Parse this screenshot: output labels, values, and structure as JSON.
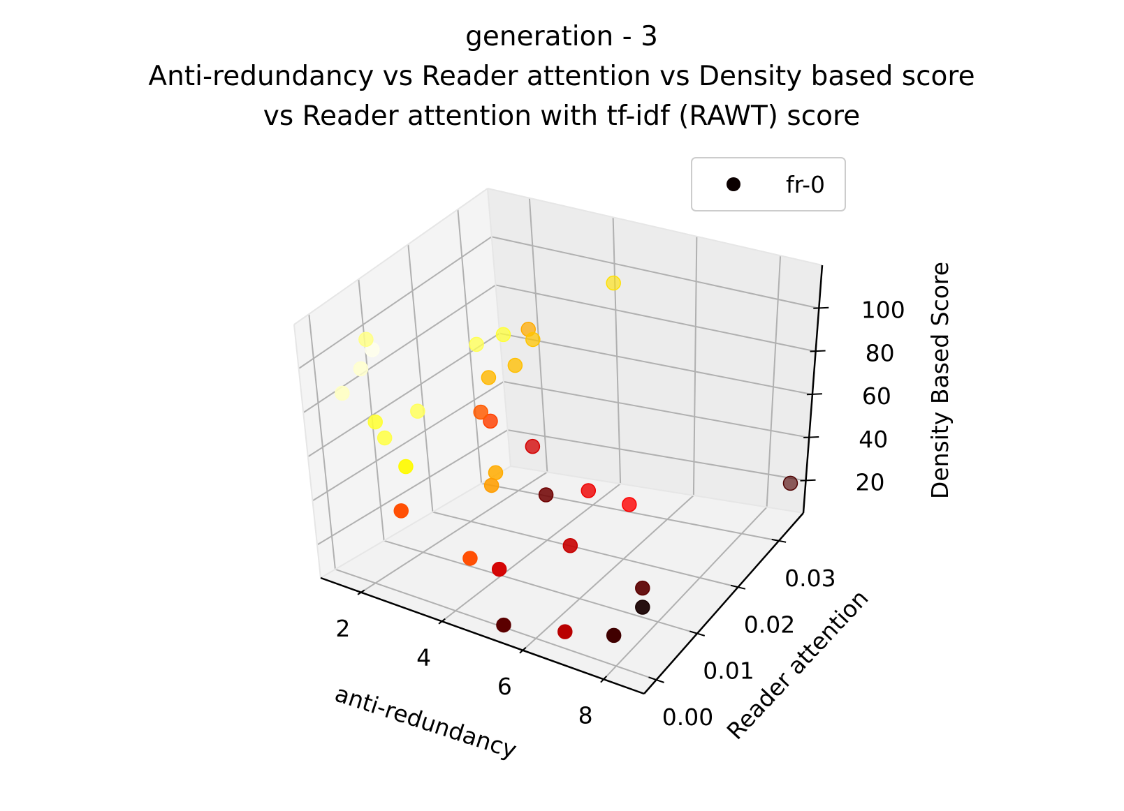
{
  "chart_data": {
    "type": "scatter",
    "projection": "3d",
    "title_lines": [
      "generation - 3",
      "Anti-redundancy vs Reader attention vs  Density based score",
      "vs Reader attention with tf-idf (RAWT) score"
    ],
    "xlabel": "anti-redundancy",
    "ylabel": "Reader attention",
    "zlabel": "Density Based Score",
    "x_ticks": [
      "2",
      "4",
      "6",
      "8"
    ],
    "y_ticks": [
      "0.00",
      "0.01",
      "0.02",
      "0.03"
    ],
    "z_ticks": [
      "20",
      "40",
      "60",
      "80",
      "100"
    ],
    "xlim": [
      1,
      9
    ],
    "ylim": [
      -0.003,
      0.036
    ],
    "zlim": [
      5,
      120
    ],
    "grid": true,
    "colormap": "hot",
    "legend": {
      "placement": "top-right",
      "entries": [
        "fr-0"
      ]
    },
    "legend_marker_color": "#0b0000",
    "series": [
      {
        "name": "fr-0",
        "points": [
          {
            "x": 1.1,
            "y": 0.008,
            "z": 84,
            "c": 0.95
          },
          {
            "x": 1.3,
            "y": 0.009,
            "z": 92,
            "c": 0.98
          },
          {
            "x": 1.3,
            "y": 0.008,
            "z": 98,
            "c": 0.88
          },
          {
            "x": 1.1,
            "y": 0.004,
            "z": 79,
            "c": 0.94
          },
          {
            "x": 1.6,
            "y": 0.006,
            "z": 66,
            "c": 0.8
          },
          {
            "x": 1.8,
            "y": 0.006,
            "z": 60,
            "c": 0.82
          },
          {
            "x": 2.3,
            "y": 0.009,
            "z": 70,
            "c": 0.84
          },
          {
            "x": 2.4,
            "y": 0.005,
            "z": 52,
            "c": 0.74
          },
          {
            "x": 3.0,
            "y": 0.016,
            "z": 92,
            "c": 0.83
          },
          {
            "x": 3.3,
            "y": 0.019,
            "z": 93,
            "c": 0.8
          },
          {
            "x": 3.5,
            "y": 0.014,
            "z": 83,
            "c": 0.64
          },
          {
            "x": 3.9,
            "y": 0.02,
            "z": 92,
            "c": 0.66
          },
          {
            "x": 3.8,
            "y": 0.02,
            "z": 96,
            "c": 0.62
          },
          {
            "x": 3.8,
            "y": 0.017,
            "z": 85,
            "c": 0.65
          },
          {
            "x": 4.7,
            "y": 0.03,
            "z": 104,
            "c": 0.7
          },
          {
            "x": 3.5,
            "y": 0.012,
            "z": 71,
            "c": 0.5
          },
          {
            "x": 3.6,
            "y": 0.013,
            "z": 66,
            "c": 0.46
          },
          {
            "x": 2.7,
            "y": 0.001,
            "z": 40,
            "c": 0.48
          },
          {
            "x": 3.9,
            "y": 0.011,
            "z": 48,
            "c": 0.62
          },
          {
            "x": 3.9,
            "y": 0.01,
            "z": 44,
            "c": 0.6
          },
          {
            "x": 4.0,
            "y": 0.018,
            "z": 49,
            "c": 0.3
          },
          {
            "x": 4.9,
            "y": 0.013,
            "z": 40,
            "c": 0.15
          },
          {
            "x": 5.5,
            "y": 0.017,
            "z": 38,
            "c": 0.34
          },
          {
            "x": 6.3,
            "y": 0.019,
            "z": 32,
            "c": 0.36
          },
          {
            "x": 5.7,
            "y": 0.011,
            "z": 25,
            "c": 0.28
          },
          {
            "x": 4.1,
            "y": 0.003,
            "z": 24,
            "c": 0.48
          },
          {
            "x": 4.7,
            "y": 0.004,
            "z": 21,
            "c": 0.3
          },
          {
            "x": 5.2,
            "y": 0.0,
            "z": 6,
            "c": 0.12
          },
          {
            "x": 6.4,
            "y": 0.003,
            "z": 5,
            "c": 0.26
          },
          {
            "x": 7.4,
            "y": 0.012,
            "z": 13,
            "c": 0.12
          },
          {
            "x": 7.5,
            "y": 0.011,
            "z": 7,
            "c": 0.02
          },
          {
            "x": 7.3,
            "y": 0.006,
            "z": 3,
            "c": 0.08
          },
          {
            "x": 8.7,
            "y": 0.035,
            "z": 20,
            "c": 0.1
          }
        ]
      }
    ]
  }
}
